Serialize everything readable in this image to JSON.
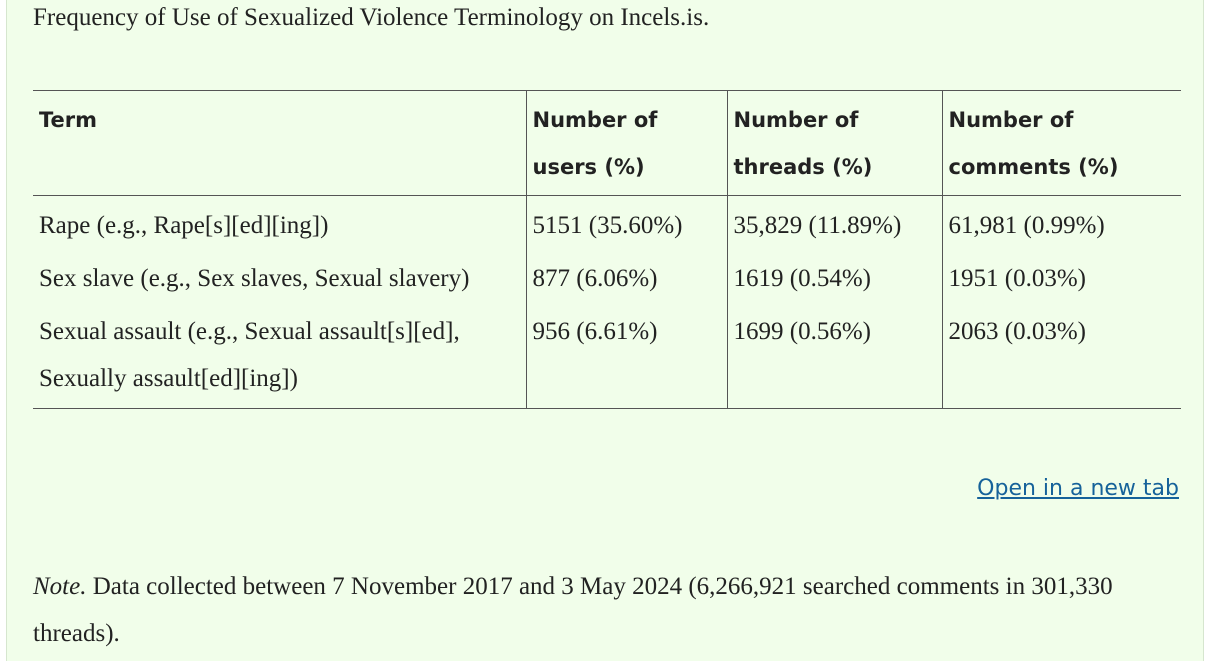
{
  "caption": "Frequency of Use of Sexualized Violence Terminology on Incels.is.",
  "table": {
    "headers": [
      "Term",
      "Number of users (%)",
      "Number of threads (%)",
      "Number of comments (%)"
    ],
    "rows": [
      [
        "Rape (e.g., Rape[s][ed][ing])",
        "5151 (35.60%)",
        "35,829 (11.89%)",
        "61,981 (0.99%)"
      ],
      [
        "Sex slave (e.g., Sex slaves, Sexual slavery)",
        "877 (6.06%)",
        "1619 (0.54%)",
        "1951 (0.03%)"
      ],
      [
        "Sexual assault (e.g., Sexual assault[s][ed], Sexually assault[ed][ing])",
        "956 (6.61%)",
        "1699 (0.56%)",
        "2063 (0.03%)"
      ]
    ]
  },
  "link": "Open in a new tab",
  "note": {
    "label": "Note.",
    "text": "Data collected between 7 November 2017 and 3 May 2024 (6,266,921 searched comments in 301,330 threads)."
  }
}
